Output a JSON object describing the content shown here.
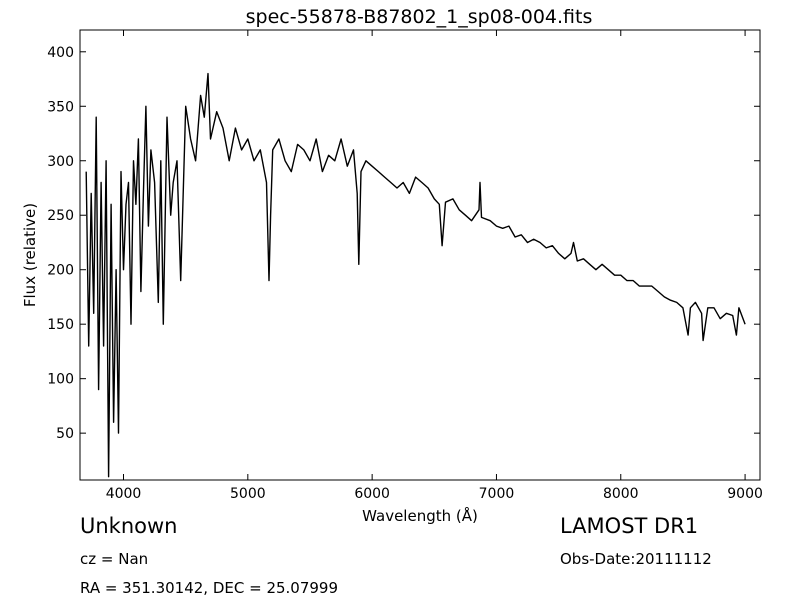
{
  "chart_data": {
    "type": "line",
    "title": "spec-55878-B87802_1_sp08-004.fits",
    "xlabel": "Wavelength (Å)",
    "ylabel": "Flux (relative)",
    "xlim": [
      3650,
      9120
    ],
    "ylim": [
      7,
      420
    ],
    "xticks": [
      4000,
      5000,
      6000,
      7000,
      8000,
      9000
    ],
    "yticks": [
      50,
      100,
      150,
      200,
      250,
      300,
      350,
      400
    ],
    "grid": false,
    "series": [
      {
        "color": "#000000",
        "x": [
          3700,
          3720,
          3740,
          3760,
          3780,
          3800,
          3820,
          3840,
          3860,
          3880,
          3900,
          3920,
          3940,
          3960,
          3980,
          4000,
          4020,
          4040,
          4060,
          4080,
          4100,
          4120,
          4140,
          4160,
          4180,
          4200,
          4220,
          4250,
          4280,
          4300,
          4320,
          4350,
          4380,
          4400,
          4430,
          4460,
          4500,
          4540,
          4580,
          4620,
          4650,
          4680,
          4700,
          4750,
          4800,
          4850,
          4900,
          4950,
          5000,
          5050,
          5100,
          5150,
          5170,
          5183,
          5200,
          5250,
          5300,
          5350,
          5400,
          5450,
          5500,
          5550,
          5600,
          5650,
          5700,
          5750,
          5800,
          5850,
          5880,
          5893,
          5910,
          5950,
          6000,
          6050,
          6100,
          6150,
          6200,
          6250,
          6300,
          6350,
          6400,
          6450,
          6500,
          6540,
          6563,
          6590,
          6650,
          6700,
          6750,
          6800,
          6860,
          6868,
          6880,
          6950,
          7000,
          7050,
          7100,
          7150,
          7200,
          7250,
          7300,
          7350,
          7400,
          7450,
          7500,
          7550,
          7600,
          7620,
          7650,
          7700,
          7750,
          7800,
          7850,
          7900,
          7950,
          8000,
          8050,
          8100,
          8150,
          8200,
          8250,
          8300,
          8350,
          8400,
          8450,
          8500,
          8542,
          8560,
          8600,
          8650,
          8662,
          8700,
          8750,
          8800,
          8850,
          8900,
          8930,
          8950,
          9000
        ],
        "y": [
          290,
          130,
          270,
          160,
          340,
          90,
          280,
          130,
          300,
          10,
          260,
          60,
          200,
          50,
          290,
          200,
          260,
          280,
          150,
          300,
          260,
          320,
          180,
          270,
          350,
          240,
          310,
          280,
          170,
          300,
          150,
          340,
          250,
          280,
          300,
          190,
          350,
          320,
          300,
          360,
          340,
          380,
          320,
          345,
          330,
          300,
          330,
          310,
          320,
          300,
          310,
          280,
          190,
          250,
          310,
          320,
          300,
          290,
          315,
          310,
          300,
          320,
          290,
          305,
          300,
          320,
          295,
          310,
          270,
          205,
          290,
          300,
          295,
          290,
          285,
          280,
          275,
          280,
          270,
          285,
          280,
          275,
          265,
          260,
          222,
          262,
          265,
          255,
          250,
          245,
          255,
          280,
          248,
          245,
          240,
          238,
          240,
          230,
          232,
          225,
          228,
          225,
          220,
          222,
          215,
          210,
          215,
          225,
          208,
          210,
          205,
          200,
          205,
          200,
          195,
          195,
          190,
          190,
          185,
          185,
          185,
          180,
          175,
          172,
          170,
          165,
          140,
          165,
          170,
          160,
          135,
          165,
          165,
          155,
          160,
          158,
          140,
          165,
          150
        ]
      }
    ]
  },
  "info": {
    "object_class": "Unknown",
    "survey": "LAMOST DR1",
    "redshift": "cz = Nan",
    "obs_date": "Obs-Date:20111112",
    "coords": "RA = 351.30142, DEC = 25.07999"
  }
}
